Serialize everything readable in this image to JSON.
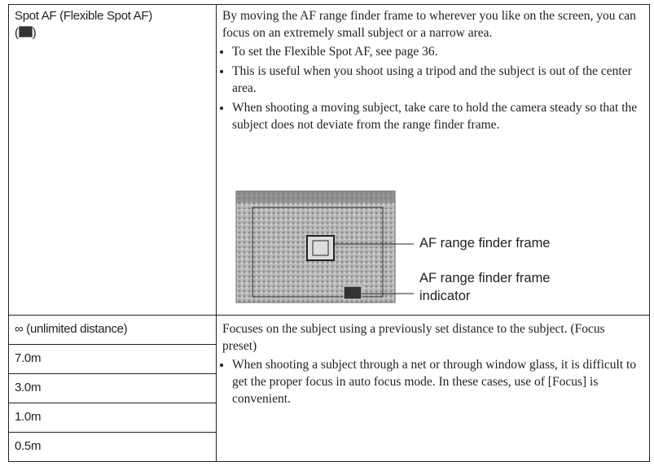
{
  "table": {
    "rows": [
      {
        "label": "Spot AF (Flexible Spot AF)",
        "icon_open": "(",
        "icon_close": ")",
        "description": "By moving the AF range finder frame to wherever you like on the screen, you can focus on an extremely small subject or a narrow area.",
        "bullets": [
          "To set the Flexible Spot AF, see page 36.",
          "This is useful when you shoot using a tripod and the subject is out of the center area.",
          "When shooting a moving subject, take care to hold the camera steady so that the subject does not deviate from the range finder frame."
        ],
        "figure": {
          "callouts": [
            "AF range finder frame",
            "AF range finder frame indicator"
          ]
        }
      },
      {
        "labels": [
          "∞ (unlimited distance)",
          "7.0m",
          "3.0m",
          "1.0m",
          "0.5m"
        ],
        "description": "Focuses on the subject using a previously set distance to the subject. (Focus preset)",
        "bullets": [
          "When shooting a subject through a net or through window glass, it is difficult to get the proper focus in auto focus mode. In these cases, use of [Focus] is convenient."
        ]
      }
    ]
  }
}
